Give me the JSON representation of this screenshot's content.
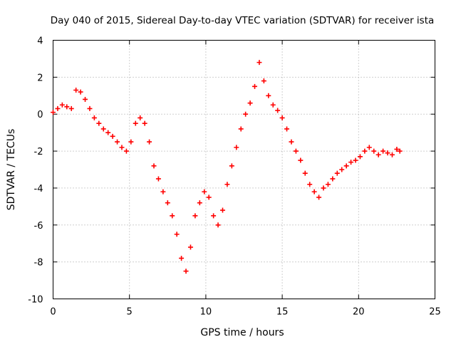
{
  "chart_data": {
    "type": "scatter",
    "title": "Day 040 of 2015, Sidereal Day-to-day VTEC variation (SDTVAR) for receiver ista",
    "xlabel": "GPS time / hours",
    "ylabel": "SDTVAR / TECUs",
    "xlim": [
      0,
      25
    ],
    "ylim": [
      -10,
      4
    ],
    "xticks": [
      "0",
      "5",
      "10",
      "15",
      "20",
      "25"
    ],
    "yticks": [
      "-10",
      "-8",
      "-6",
      "-4",
      "-2",
      "0",
      "2",
      "4"
    ],
    "grid": true,
    "marker": "+",
    "color": "#ff0000",
    "series": [
      {
        "name": "SDTVAR",
        "x": [
          0.0,
          0.3,
          0.6,
          0.9,
          1.2,
          1.5,
          1.8,
          2.1,
          2.4,
          2.7,
          3.0,
          3.3,
          3.6,
          3.9,
          4.2,
          4.5,
          4.8,
          5.1,
          5.4,
          5.7,
          6.0,
          6.3,
          6.6,
          6.9,
          7.2,
          7.5,
          7.8,
          8.1,
          8.4,
          8.7,
          9.0,
          9.3,
          9.6,
          9.9,
          10.2,
          10.5,
          10.8,
          11.1,
          11.4,
          11.7,
          12.0,
          12.3,
          12.6,
          12.9,
          13.2,
          13.5,
          13.8,
          14.1,
          14.4,
          14.7,
          15.0,
          15.3,
          15.6,
          15.9,
          16.2,
          16.5,
          16.8,
          17.1,
          17.4,
          17.7,
          18.0,
          18.3,
          18.6,
          18.9,
          19.2,
          19.5,
          19.8,
          20.1,
          20.4,
          20.7,
          21.0,
          21.3,
          21.6,
          21.9,
          22.2,
          22.5,
          22.7
        ],
        "y": [
          0.1,
          0.3,
          0.5,
          0.4,
          0.3,
          1.3,
          1.2,
          0.8,
          0.3,
          -0.2,
          -0.5,
          -0.8,
          -1.0,
          -1.2,
          -1.5,
          -1.8,
          -2.0,
          -1.5,
          -0.5,
          -0.2,
          -0.5,
          -1.5,
          -2.8,
          -3.5,
          -4.2,
          -4.8,
          -5.5,
          -6.5,
          -7.8,
          -8.5,
          -7.2,
          -5.5,
          -4.8,
          -4.2,
          -4.5,
          -5.5,
          -6.0,
          -5.2,
          -3.8,
          -2.8,
          -1.8,
          -0.8,
          0.0,
          0.6,
          1.5,
          2.8,
          1.8,
          1.0,
          0.5,
          0.2,
          -0.2,
          -0.8,
          -1.5,
          -2.0,
          -2.5,
          -3.2,
          -3.8,
          -4.2,
          -4.5,
          -4.0,
          -3.8,
          -3.5,
          -3.2,
          -3.0,
          -2.8,
          -2.6,
          -2.5,
          -2.3,
          -2.0,
          -1.8,
          -2.0,
          -2.2,
          -2.0,
          -2.1,
          -2.2,
          -1.9,
          -2.0
        ]
      }
    ]
  }
}
